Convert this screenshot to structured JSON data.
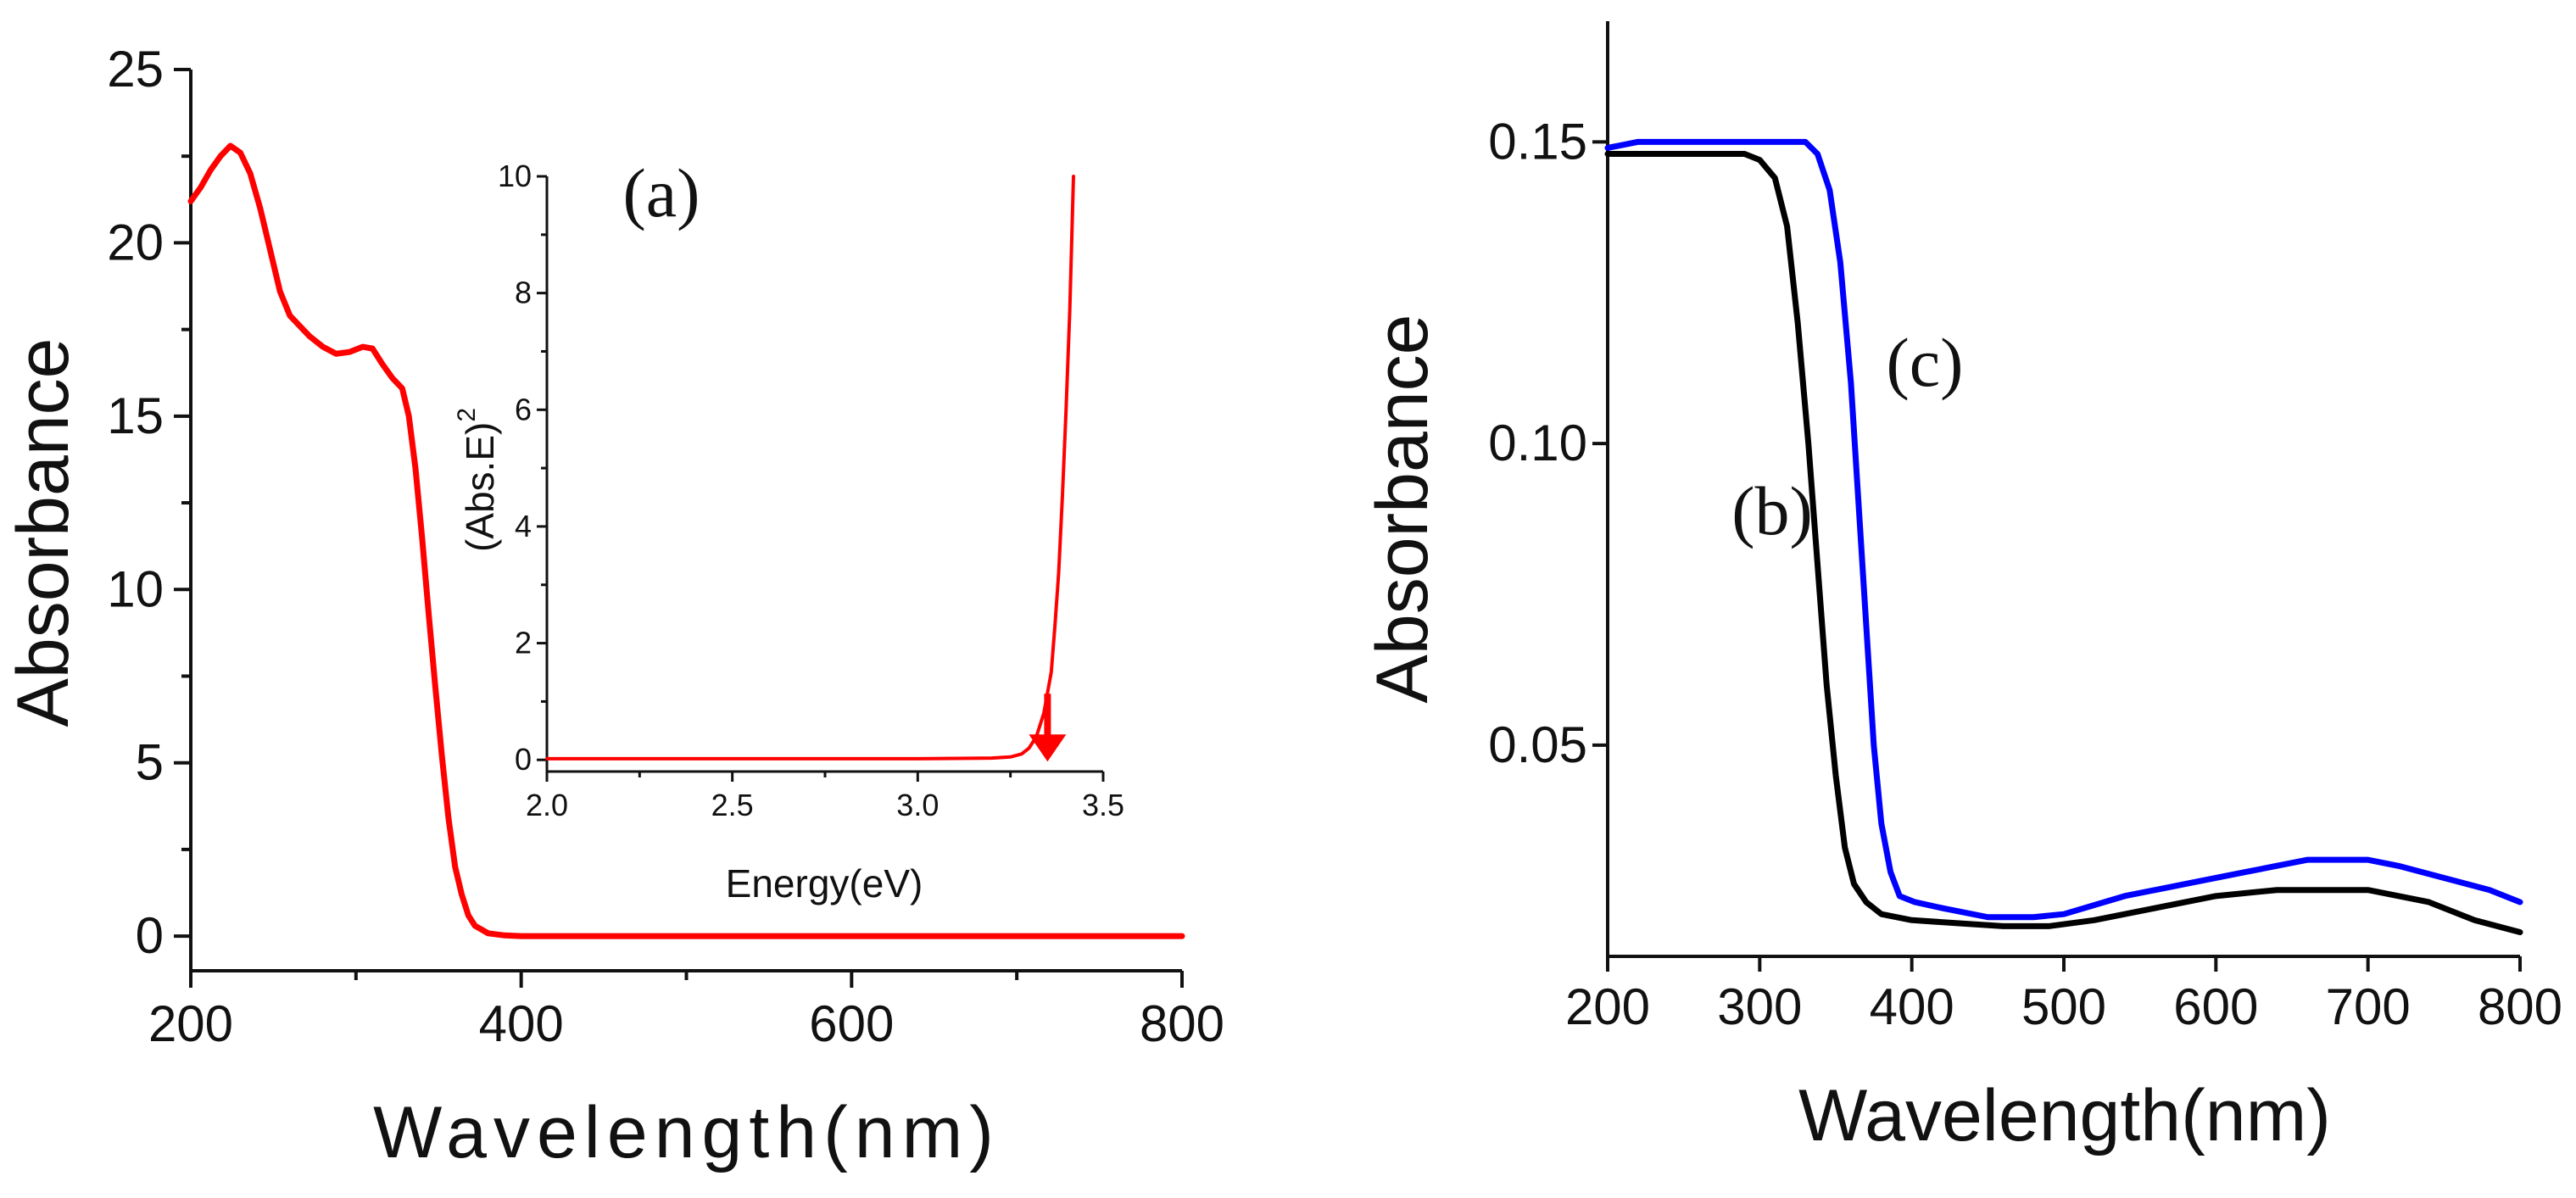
{
  "chart_data": [
    {
      "id": "left",
      "type": "line",
      "xlabel": "Wavelength(nm)",
      "ylabel": "Absorbance",
      "xlim": [
        200,
        800
      ],
      "ylim": [
        -1,
        25
      ],
      "xticks": [
        200,
        400,
        600,
        800
      ],
      "yticks": [
        0,
        5,
        10,
        15,
        20,
        25
      ],
      "xtick_labels": [
        "200",
        "400",
        "600",
        "800"
      ],
      "ytick_labels": [
        "0",
        "5",
        "10",
        "15",
        "20",
        "25"
      ],
      "grid": false,
      "series": [
        {
          "name": "(a)",
          "color": "#ff0000",
          "points": [
            [
              200,
              21.2
            ],
            [
              206,
              21.6
            ],
            [
              212,
              22.1
            ],
            [
              218,
              22.5
            ],
            [
              224,
              22.8
            ],
            [
              230,
              22.6
            ],
            [
              236,
              22.0
            ],
            [
              242,
              21.0
            ],
            [
              248,
              19.8
            ],
            [
              254,
              18.6
            ],
            [
              260,
              17.9
            ],
            [
              266,
              17.6
            ],
            [
              272,
              17.3
            ],
            [
              280,
              17.0
            ],
            [
              288,
              16.8
            ],
            [
              296,
              16.85
            ],
            [
              304,
              17.0
            ],
            [
              310,
              16.95
            ],
            [
              316,
              16.5
            ],
            [
              322,
              16.1
            ],
            [
              328,
              15.8
            ],
            [
              332,
              15.0
            ],
            [
              336,
              13.5
            ],
            [
              340,
              11.5
            ],
            [
              344,
              9.3
            ],
            [
              348,
              7.2
            ],
            [
              352,
              5.2
            ],
            [
              356,
              3.4
            ],
            [
              360,
              2.0
            ],
            [
              364,
              1.2
            ],
            [
              368,
              0.6
            ],
            [
              372,
              0.3
            ],
            [
              380,
              0.08
            ],
            [
              390,
              0.02
            ],
            [
              400,
              0.0
            ],
            [
              450,
              0.0
            ],
            [
              500,
              0.0
            ],
            [
              600,
              0.0
            ],
            [
              700,
              0.0
            ],
            [
              800,
              0.0
            ]
          ]
        }
      ]
    },
    {
      "id": "inset",
      "type": "line",
      "xlabel": "Energy(eV)",
      "ylabel": "(Abs.E)",
      "ylabel_exponent": "2",
      "xlim": [
        2.0,
        3.5
      ],
      "ylim": [
        -0.2,
        10
      ],
      "xticks": [
        2.0,
        2.5,
        3.0,
        3.5
      ],
      "yticks": [
        0,
        2,
        4,
        6,
        8,
        10
      ],
      "xtick_labels": [
        "2.0",
        "2.5",
        "3.0",
        "3.5"
      ],
      "ytick_labels": [
        "0",
        "2",
        "4",
        "6",
        "8",
        "10"
      ],
      "grid": false,
      "annotation": {
        "type": "arrow",
        "points_to_x": 3.35,
        "points_to_y": 0.0,
        "color": "#ff0000"
      },
      "series": [
        {
          "name": "(Abs.E)^2",
          "color": "#ff0000",
          "points": [
            [
              2.0,
              0.02
            ],
            [
              2.5,
              0.02
            ],
            [
              3.0,
              0.02
            ],
            [
              3.2,
              0.03
            ],
            [
              3.25,
              0.05
            ],
            [
              3.28,
              0.1
            ],
            [
              3.3,
              0.2
            ],
            [
              3.32,
              0.4
            ],
            [
              3.34,
              0.8
            ],
            [
              3.36,
              1.5
            ],
            [
              3.37,
              2.3
            ],
            [
              3.38,
              3.2
            ],
            [
              3.39,
              4.5
            ],
            [
              3.4,
              6.0
            ],
            [
              3.41,
              7.7
            ],
            [
              3.42,
              10.0
            ]
          ]
        }
      ]
    },
    {
      "id": "right",
      "type": "line",
      "xlabel": "Wavelength(nm)",
      "ylabel": "Absorbance",
      "xlim": [
        200,
        800
      ],
      "ylim": [
        0.015,
        0.17
      ],
      "xticks": [
        200,
        300,
        400,
        500,
        600,
        700,
        800
      ],
      "yticks": [
        0.05,
        0.1,
        0.15
      ],
      "xtick_labels": [
        "200",
        "300",
        "400",
        "500",
        "600",
        "700",
        "800"
      ],
      "ytick_labels": [
        "0.05",
        "0.10",
        "0.15"
      ],
      "grid": false,
      "series": [
        {
          "name": "(b)",
          "color": "#000000",
          "points": [
            [
              200,
              0.148
            ],
            [
              250,
              0.148
            ],
            [
              290,
              0.148
            ],
            [
              300,
              0.147
            ],
            [
              310,
              0.144
            ],
            [
              318,
              0.136
            ],
            [
              325,
              0.12
            ],
            [
              332,
              0.1
            ],
            [
              338,
              0.08
            ],
            [
              344,
              0.06
            ],
            [
              350,
              0.045
            ],
            [
              356,
              0.033
            ],
            [
              362,
              0.027
            ],
            [
              370,
              0.024
            ],
            [
              380,
              0.022
            ],
            [
              400,
              0.021
            ],
            [
              430,
              0.0205
            ],
            [
              460,
              0.02
            ],
            [
              490,
              0.02
            ],
            [
              520,
              0.021
            ],
            [
              560,
              0.023
            ],
            [
              600,
              0.025
            ],
            [
              640,
              0.026
            ],
            [
              680,
              0.026
            ],
            [
              700,
              0.026
            ],
            [
              740,
              0.024
            ],
            [
              770,
              0.021
            ],
            [
              800,
              0.019
            ]
          ]
        },
        {
          "name": "(c)",
          "color": "#0000ff",
          "points": [
            [
              200,
              0.149
            ],
            [
              220,
              0.15
            ],
            [
              260,
              0.15
            ],
            [
              300,
              0.15
            ],
            [
              330,
              0.15
            ],
            [
              338,
              0.148
            ],
            [
              346,
              0.142
            ],
            [
              353,
              0.13
            ],
            [
              360,
              0.11
            ],
            [
              365,
              0.09
            ],
            [
              370,
              0.07
            ],
            [
              375,
              0.05
            ],
            [
              380,
              0.037
            ],
            [
              386,
              0.029
            ],
            [
              392,
              0.025
            ],
            [
              402,
              0.024
            ],
            [
              420,
              0.023
            ],
            [
              450,
              0.0215
            ],
            [
              480,
              0.0215
            ],
            [
              500,
              0.022
            ],
            [
              540,
              0.025
            ],
            [
              580,
              0.027
            ],
            [
              620,
              0.029
            ],
            [
              660,
              0.031
            ],
            [
              700,
              0.031
            ],
            [
              720,
              0.03
            ],
            [
              750,
              0.028
            ],
            [
              780,
              0.026
            ],
            [
              800,
              0.024
            ]
          ]
        }
      ]
    }
  ],
  "panel_labels": {
    "a": "(a)",
    "b": "(b)",
    "c": "(c)"
  }
}
